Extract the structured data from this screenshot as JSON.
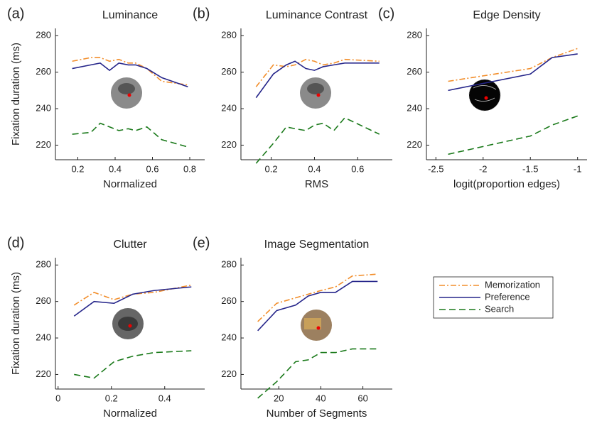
{
  "legend": {
    "position": "right",
    "entries": [
      {
        "name": "Memorization",
        "color": "#f28e2b",
        "dash": "8,3,2,3"
      },
      {
        "name": "Preference",
        "color": "#25258a",
        "dash": "none"
      },
      {
        "name": "Search",
        "color": "#1b7a1b",
        "dash": "9,5"
      }
    ]
  },
  "chart_data": [
    {
      "type": "line",
      "label": "(a)",
      "title": "Luminance",
      "xlabel": "Normalized",
      "ylabel": "Fixation duration (ms)",
      "x": [
        0.17,
        0.27,
        0.32,
        0.37,
        0.42,
        0.47,
        0.51,
        0.57,
        0.65,
        0.79
      ],
      "series": [
        {
          "values": [
            266,
            268,
            268,
            266,
            267,
            265,
            265,
            262,
            255,
            253
          ]
        },
        {
          "values": [
            262,
            264,
            265,
            261,
            265,
            264,
            264,
            262,
            257,
            252
          ]
        },
        {
          "values": [
            226,
            227,
            232,
            230,
            228,
            229,
            228,
            230,
            223,
            219
          ]
        }
      ],
      "xlim": [
        0.08,
        0.88
      ],
      "xticks": [
        0.2,
        0.4,
        0.6,
        0.8
      ],
      "ylim": [
        212,
        284
      ],
      "yticks": [
        220,
        240,
        260,
        280
      ]
    },
    {
      "type": "line",
      "label": "(b)",
      "title": "Luminance Contrast",
      "xlabel": "RMS",
      "x": [
        0.13,
        0.21,
        0.27,
        0.31,
        0.36,
        0.4,
        0.44,
        0.49,
        0.54,
        0.7
      ],
      "series": [
        {
          "values": [
            252,
            264,
            263,
            264,
            267,
            266,
            264,
            265,
            267,
            266
          ]
        },
        {
          "values": [
            246,
            259,
            264,
            266,
            262,
            261,
            263,
            264,
            265,
            265
          ]
        },
        {
          "values": [
            210,
            221,
            230,
            229,
            228,
            231,
            232,
            228,
            235,
            226
          ]
        }
      ],
      "xlim": [
        0.06,
        0.76
      ],
      "xticks": [
        0.2,
        0.4,
        0.6
      ],
      "ylim": [
        212,
        284
      ],
      "yticks": [
        220,
        240,
        260,
        280
      ]
    },
    {
      "type": "line",
      "label": "(c)",
      "title": "Edge Density",
      "xlabel": "logit(proportion edges)",
      "x": [
        -2.37,
        -1.5,
        -1.27,
        -1.0
      ],
      "series": [
        {
          "values": [
            255,
            262,
            268,
            273
          ]
        },
        {
          "values": [
            250,
            259,
            268,
            270
          ]
        },
        {
          "values": [
            215,
            225,
            231,
            236
          ]
        }
      ],
      "xlim": [
        -2.6,
        -0.9
      ],
      "xticks": [
        -2.5,
        -2,
        -1.5,
        -1
      ],
      "ylim": [
        212,
        284
      ],
      "yticks": [
        220,
        240,
        260,
        280
      ]
    },
    {
      "type": "line",
      "label": "(d)",
      "title": "Clutter",
      "xlabel": "Normalized",
      "ylabel": "Fixation duration (ms)",
      "x": [
        0.06,
        0.135,
        0.21,
        0.28,
        0.36,
        0.5
      ],
      "series": [
        {
          "values": [
            258,
            265,
            261,
            264,
            265,
            269
          ]
        },
        {
          "values": [
            252,
            260,
            259,
            264,
            266,
            268
          ]
        },
        {
          "values": [
            220,
            218,
            227,
            230,
            232,
            233
          ]
        }
      ],
      "xlim": [
        -0.01,
        0.55
      ],
      "xticks": [
        0,
        0.2,
        0.4
      ],
      "ylim": [
        212,
        284
      ],
      "yticks": [
        220,
        240,
        260,
        280
      ]
    },
    {
      "type": "line",
      "label": "(e)",
      "title": "Image Segmentation",
      "xlabel": "Number of Segments",
      "x": [
        10,
        19,
        28,
        34,
        40,
        47,
        55,
        67
      ],
      "series": [
        {
          "values": [
            249,
            259,
            262,
            264,
            266,
            268,
            274,
            275
          ]
        },
        {
          "values": [
            244,
            255,
            258,
            263,
            265,
            265,
            271,
            271
          ]
        },
        {
          "values": [
            207,
            216,
            227,
            228,
            232,
            232,
            234,
            234
          ]
        }
      ],
      "xlim": [
        2,
        74
      ],
      "xticks": [
        20,
        40,
        60
      ],
      "ylim": [
        212,
        284
      ],
      "yticks": [
        220,
        240,
        260,
        280
      ]
    }
  ]
}
